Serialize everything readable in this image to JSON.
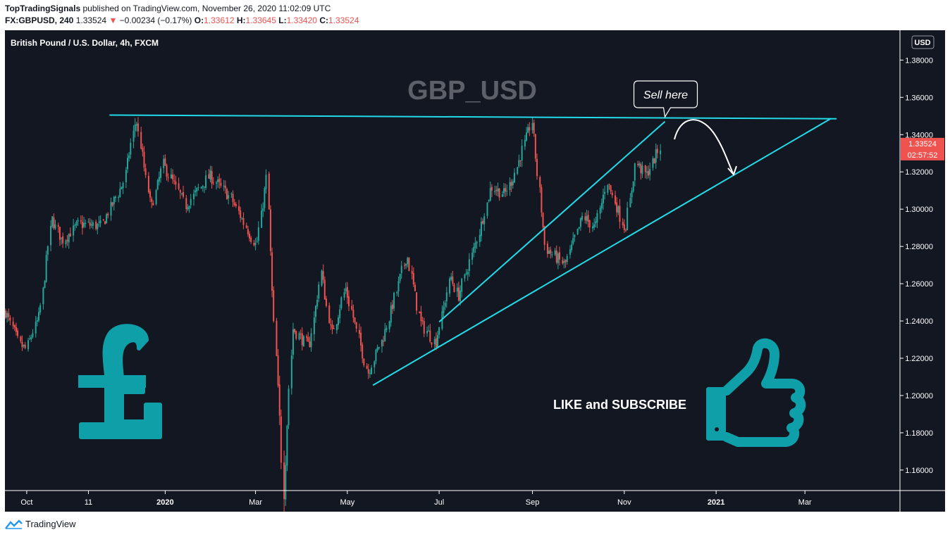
{
  "header": {
    "author": "TopTradingSignals",
    "published": "published on TradingView.com, November 26, 2020 11:02:09 UTC",
    "symbol_line": "FX:GBPUSD, 240",
    "last": "1.33524",
    "change_arrow": "▼",
    "change": "−0.00234 (−0.17%)",
    "o_label": "O:",
    "o_value": "1.33612",
    "h_label": "H:",
    "h_value": "1.33645",
    "l_label": "L:",
    "l_value": "1.33420",
    "c_label": "C:",
    "c_value": "1.33524"
  },
  "chart_data": {
    "type": "candlestick",
    "title": "British Pound / U.S. Dollar, 4h, FXCM",
    "watermark": "GBP_USD",
    "currency": "USD",
    "y_ticks": [
      "1.38000",
      "1.36000",
      "1.34000",
      "1.32000",
      "1.30000",
      "1.28000",
      "1.26000",
      "1.24000",
      "1.22000",
      "1.20000",
      "1.18000",
      "1.16000"
    ],
    "y_tick_values": [
      1.38,
      1.36,
      1.34,
      1.32,
      1.3,
      1.28,
      1.26,
      1.24,
      1.22,
      1.2,
      1.18,
      1.16
    ],
    "ylim": [
      1.149,
      1.396
    ],
    "x_ticks": [
      "Oct",
      "11",
      "2020",
      "Mar",
      "May",
      "Jul",
      "Sep",
      "Nov",
      "2021",
      "Mar"
    ],
    "last_price_label": "1.33524",
    "last_price": 1.33524,
    "countdown": "02:57:52",
    "anchors": [
      {
        "d": "2019-09-17",
        "p": 1.245
      },
      {
        "d": "2019-09-27",
        "p": 1.227
      },
      {
        "d": "2019-10-01",
        "p": 1.225
      },
      {
        "d": "2019-10-10",
        "p": 1.243
      },
      {
        "d": "2019-10-18",
        "p": 1.295
      },
      {
        "d": "2019-10-25",
        "p": 1.283
      },
      {
        "d": "2019-11-05",
        "p": 1.292
      },
      {
        "d": "2019-11-20",
        "p": 1.291
      },
      {
        "d": "2019-12-05",
        "p": 1.315
      },
      {
        "d": "2019-12-13",
        "p": 1.349
      },
      {
        "d": "2019-12-23",
        "p": 1.3
      },
      {
        "d": "2019-12-31",
        "p": 1.324
      },
      {
        "d": "2020-01-15",
        "p": 1.302
      },
      {
        "d": "2020-01-31",
        "p": 1.318
      },
      {
        "d": "2020-02-14",
        "p": 1.306
      },
      {
        "d": "2020-03-02",
        "p": 1.28
      },
      {
        "d": "2020-03-09",
        "p": 1.318
      },
      {
        "d": "2020-03-12",
        "p": 1.262
      },
      {
        "d": "2020-03-20",
        "p": 1.151
      },
      {
        "d": "2020-03-26",
        "p": 1.236
      },
      {
        "d": "2020-04-06",
        "p": 1.226
      },
      {
        "d": "2020-04-14",
        "p": 1.266
      },
      {
        "d": "2020-04-21",
        "p": 1.232
      },
      {
        "d": "2020-04-30",
        "p": 1.258
      },
      {
        "d": "2020-05-15",
        "p": 1.212
      },
      {
        "d": "2020-05-26",
        "p": 1.233
      },
      {
        "d": "2020-06-10",
        "p": 1.276
      },
      {
        "d": "2020-06-19",
        "p": 1.239
      },
      {
        "d": "2020-06-29",
        "p": 1.228
      },
      {
        "d": "2020-07-09",
        "p": 1.264
      },
      {
        "d": "2020-07-14",
        "p": 1.253
      },
      {
        "d": "2020-07-27",
        "p": 1.285
      },
      {
        "d": "2020-08-05",
        "p": 1.312
      },
      {
        "d": "2020-08-14",
        "p": 1.308
      },
      {
        "d": "2020-08-20",
        "p": 1.318
      },
      {
        "d": "2020-09-01",
        "p": 1.347
      },
      {
        "d": "2020-09-10",
        "p": 1.279
      },
      {
        "d": "2020-09-23",
        "p": 1.27
      },
      {
        "d": "2020-10-05",
        "p": 1.296
      },
      {
        "d": "2020-10-13",
        "p": 1.29
      },
      {
        "d": "2020-10-21",
        "p": 1.315
      },
      {
        "d": "2020-11-02",
        "p": 1.289
      },
      {
        "d": "2020-11-09",
        "p": 1.325
      },
      {
        "d": "2020-11-16",
        "p": 1.318
      },
      {
        "d": "2020-11-26",
        "p": 1.335
      }
    ],
    "trendlines": [
      {
        "name": "resistance",
        "from": {
          "d": "2019-11-25",
          "p": 1.3505
        },
        "to": {
          "d": "2021-03-22",
          "p": 1.3485
        }
      },
      {
        "name": "wedge-upper",
        "from": {
          "d": "2020-07-01",
          "p": 1.2395
        },
        "to": {
          "d": "2020-11-28",
          "p": 1.347
        }
      },
      {
        "name": "wedge-lower",
        "from": {
          "d": "2020-05-18",
          "p": 1.2055
        },
        "to": {
          "d": "2021-03-18",
          "p": 1.3485
        }
      }
    ],
    "annotations": [
      {
        "text": "Sell here",
        "d": "2020-11-28",
        "p": 1.3495
      },
      {
        "text": "LIKE and SUBSCRIBE"
      }
    ],
    "icons": [
      "pound-sign-icon",
      "thumbs-up-icon"
    ],
    "colors": {
      "background": "#131722",
      "up": "#26a69a",
      "down": "#ef5350",
      "trendline": "#22dbe8",
      "icon": "#0f9fa8"
    }
  },
  "footer": {
    "brand": "TradingView"
  }
}
